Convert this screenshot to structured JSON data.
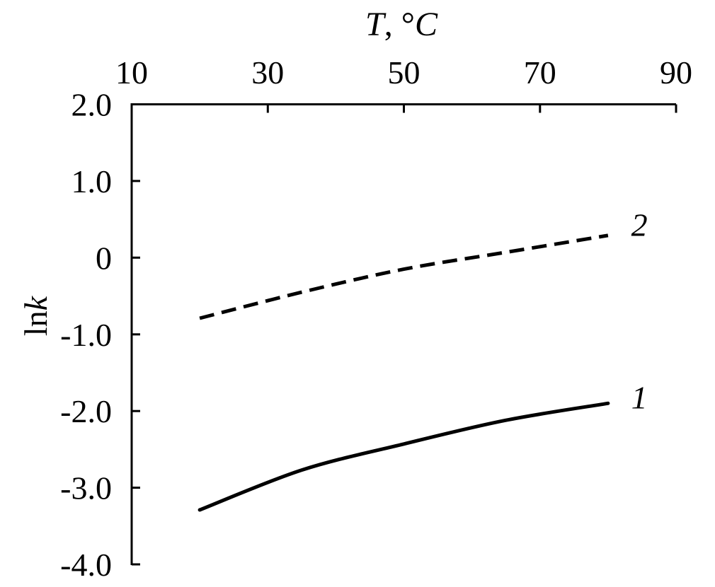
{
  "chart_data": {
    "type": "line",
    "title": "T, °C",
    "title_parts": {
      "symbol": "T",
      "separator": ", °",
      "unit": "C"
    },
    "xlabel": "T, °C",
    "ylabel": "ln k",
    "ylabel_parts": {
      "roman": "ln",
      "italic": "k"
    },
    "x_axis": {
      "position": "top",
      "range": [
        10,
        90
      ],
      "ticks": [
        10,
        30,
        50,
        70,
        90
      ],
      "tick_labels": [
        "10",
        "30",
        "50",
        "70",
        "90"
      ]
    },
    "y_axis": {
      "position": "left",
      "range": [
        -4,
        2
      ],
      "ticks": [
        2,
        1,
        0,
        -1,
        -2,
        -3,
        -4
      ],
      "tick_labels": [
        "2.0",
        "1.0",
        "0",
        "-1.0",
        "-2.0",
        "-3.0",
        "-4.0"
      ]
    },
    "grid": false,
    "legend": "curve-end-labels",
    "line_color": "#000000",
    "background_color": "#ffffff",
    "series": [
      {
        "name": "1",
        "line_style": "solid",
        "color": "#000000",
        "x": [
          20,
          35,
          50,
          65,
          80
        ],
        "y": [
          -3.29,
          -2.77,
          -2.43,
          -2.12,
          -1.9
        ]
      },
      {
        "name": "2",
        "line_style": "dashed",
        "color": "#000000",
        "x": [
          20,
          35,
          50,
          65,
          80
        ],
        "y": [
          -0.79,
          -0.45,
          -0.15,
          0.07,
          0.29
        ]
      }
    ],
    "series_label_positions": [
      {
        "x": 84.6,
        "y": -1.82
      },
      {
        "x": 84.6,
        "y": 0.43
      }
    ]
  }
}
